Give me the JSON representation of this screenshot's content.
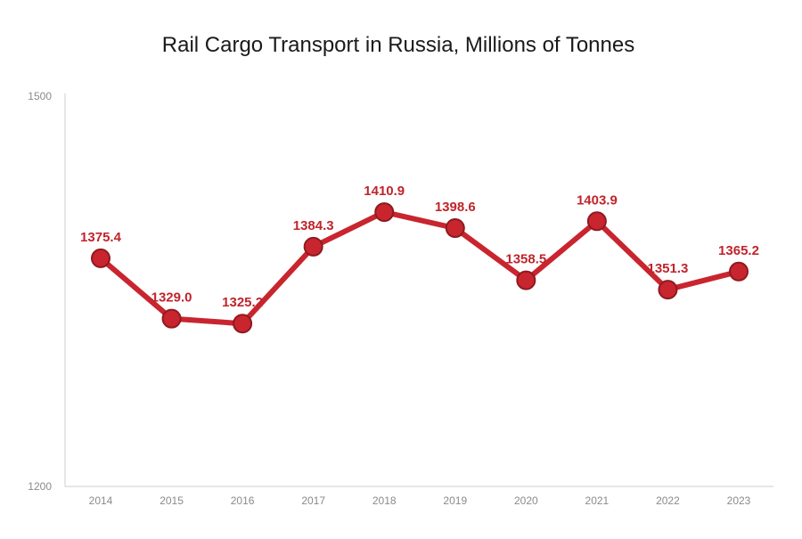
{
  "chart_data": {
    "type": "line",
    "title": "Rail Cargo Transport in Russia, Millions of Tonnes",
    "xlabel": "",
    "ylabel": "",
    "categories": [
      "2014",
      "2015",
      "2016",
      "2017",
      "2018",
      "2019",
      "2020",
      "2021",
      "2022",
      "2023"
    ],
    "series": [
      {
        "name": "Rail Cargo Transport",
        "values": [
          1375.4,
          1329.0,
          1325.2,
          1384.3,
          1410.9,
          1398.6,
          1358.5,
          1403.9,
          1351.3,
          1365.2
        ],
        "labels": [
          "1375.4",
          "1329.0",
          "1325.2",
          "1384.3",
          "1410.9",
          "1398.6",
          "1358.5",
          "1403.9",
          "1351.3",
          "1365.2"
        ]
      }
    ],
    "ylim": [
      1200,
      1500
    ],
    "yticks": [
      "1200",
      "1500"
    ],
    "grid": false,
    "legend": "none",
    "colors": {
      "line": "#c9252f",
      "marker_fill": "#c9252f",
      "marker_stroke": "#8e1a20",
      "label": "#c0242c",
      "axis": "#cccccc"
    }
  }
}
